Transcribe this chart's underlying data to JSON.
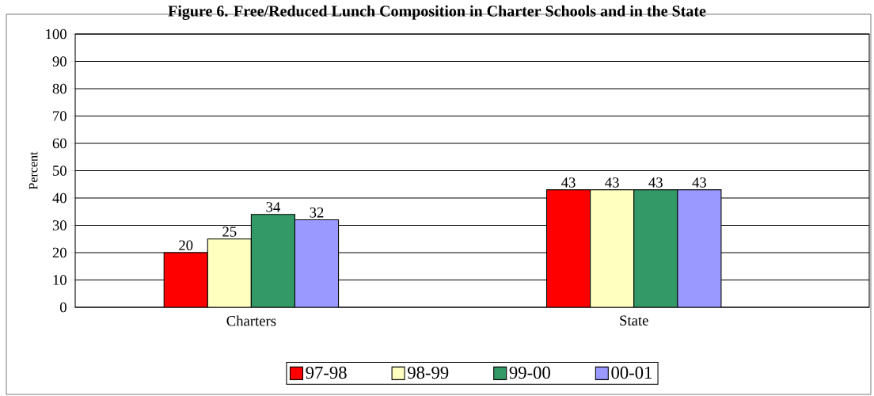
{
  "chart_data": {
    "type": "bar",
    "title": "Figure 6. Free/Reduced Lunch Composition in Charter Schools and in the State",
    "ylabel": "Percent",
    "categories": [
      "Charters",
      "State"
    ],
    "series": [
      {
        "name": "97-98",
        "color": "#ff0000",
        "values": [
          20,
          43
        ]
      },
      {
        "name": "98-99",
        "color": "#ffffc0",
        "values": [
          25,
          43
        ]
      },
      {
        "name": "99-00",
        "color": "#339966",
        "values": [
          34,
          43
        ]
      },
      {
        "name": "00-01",
        "color": "#9999ff",
        "values": [
          32,
          43
        ]
      }
    ],
    "ylim": [
      0,
      100
    ],
    "yticks": [
      0,
      10,
      20,
      30,
      40,
      50,
      60,
      70,
      80,
      90,
      100
    ],
    "grid": "y",
    "legend": "bottom",
    "data_labels": true
  }
}
